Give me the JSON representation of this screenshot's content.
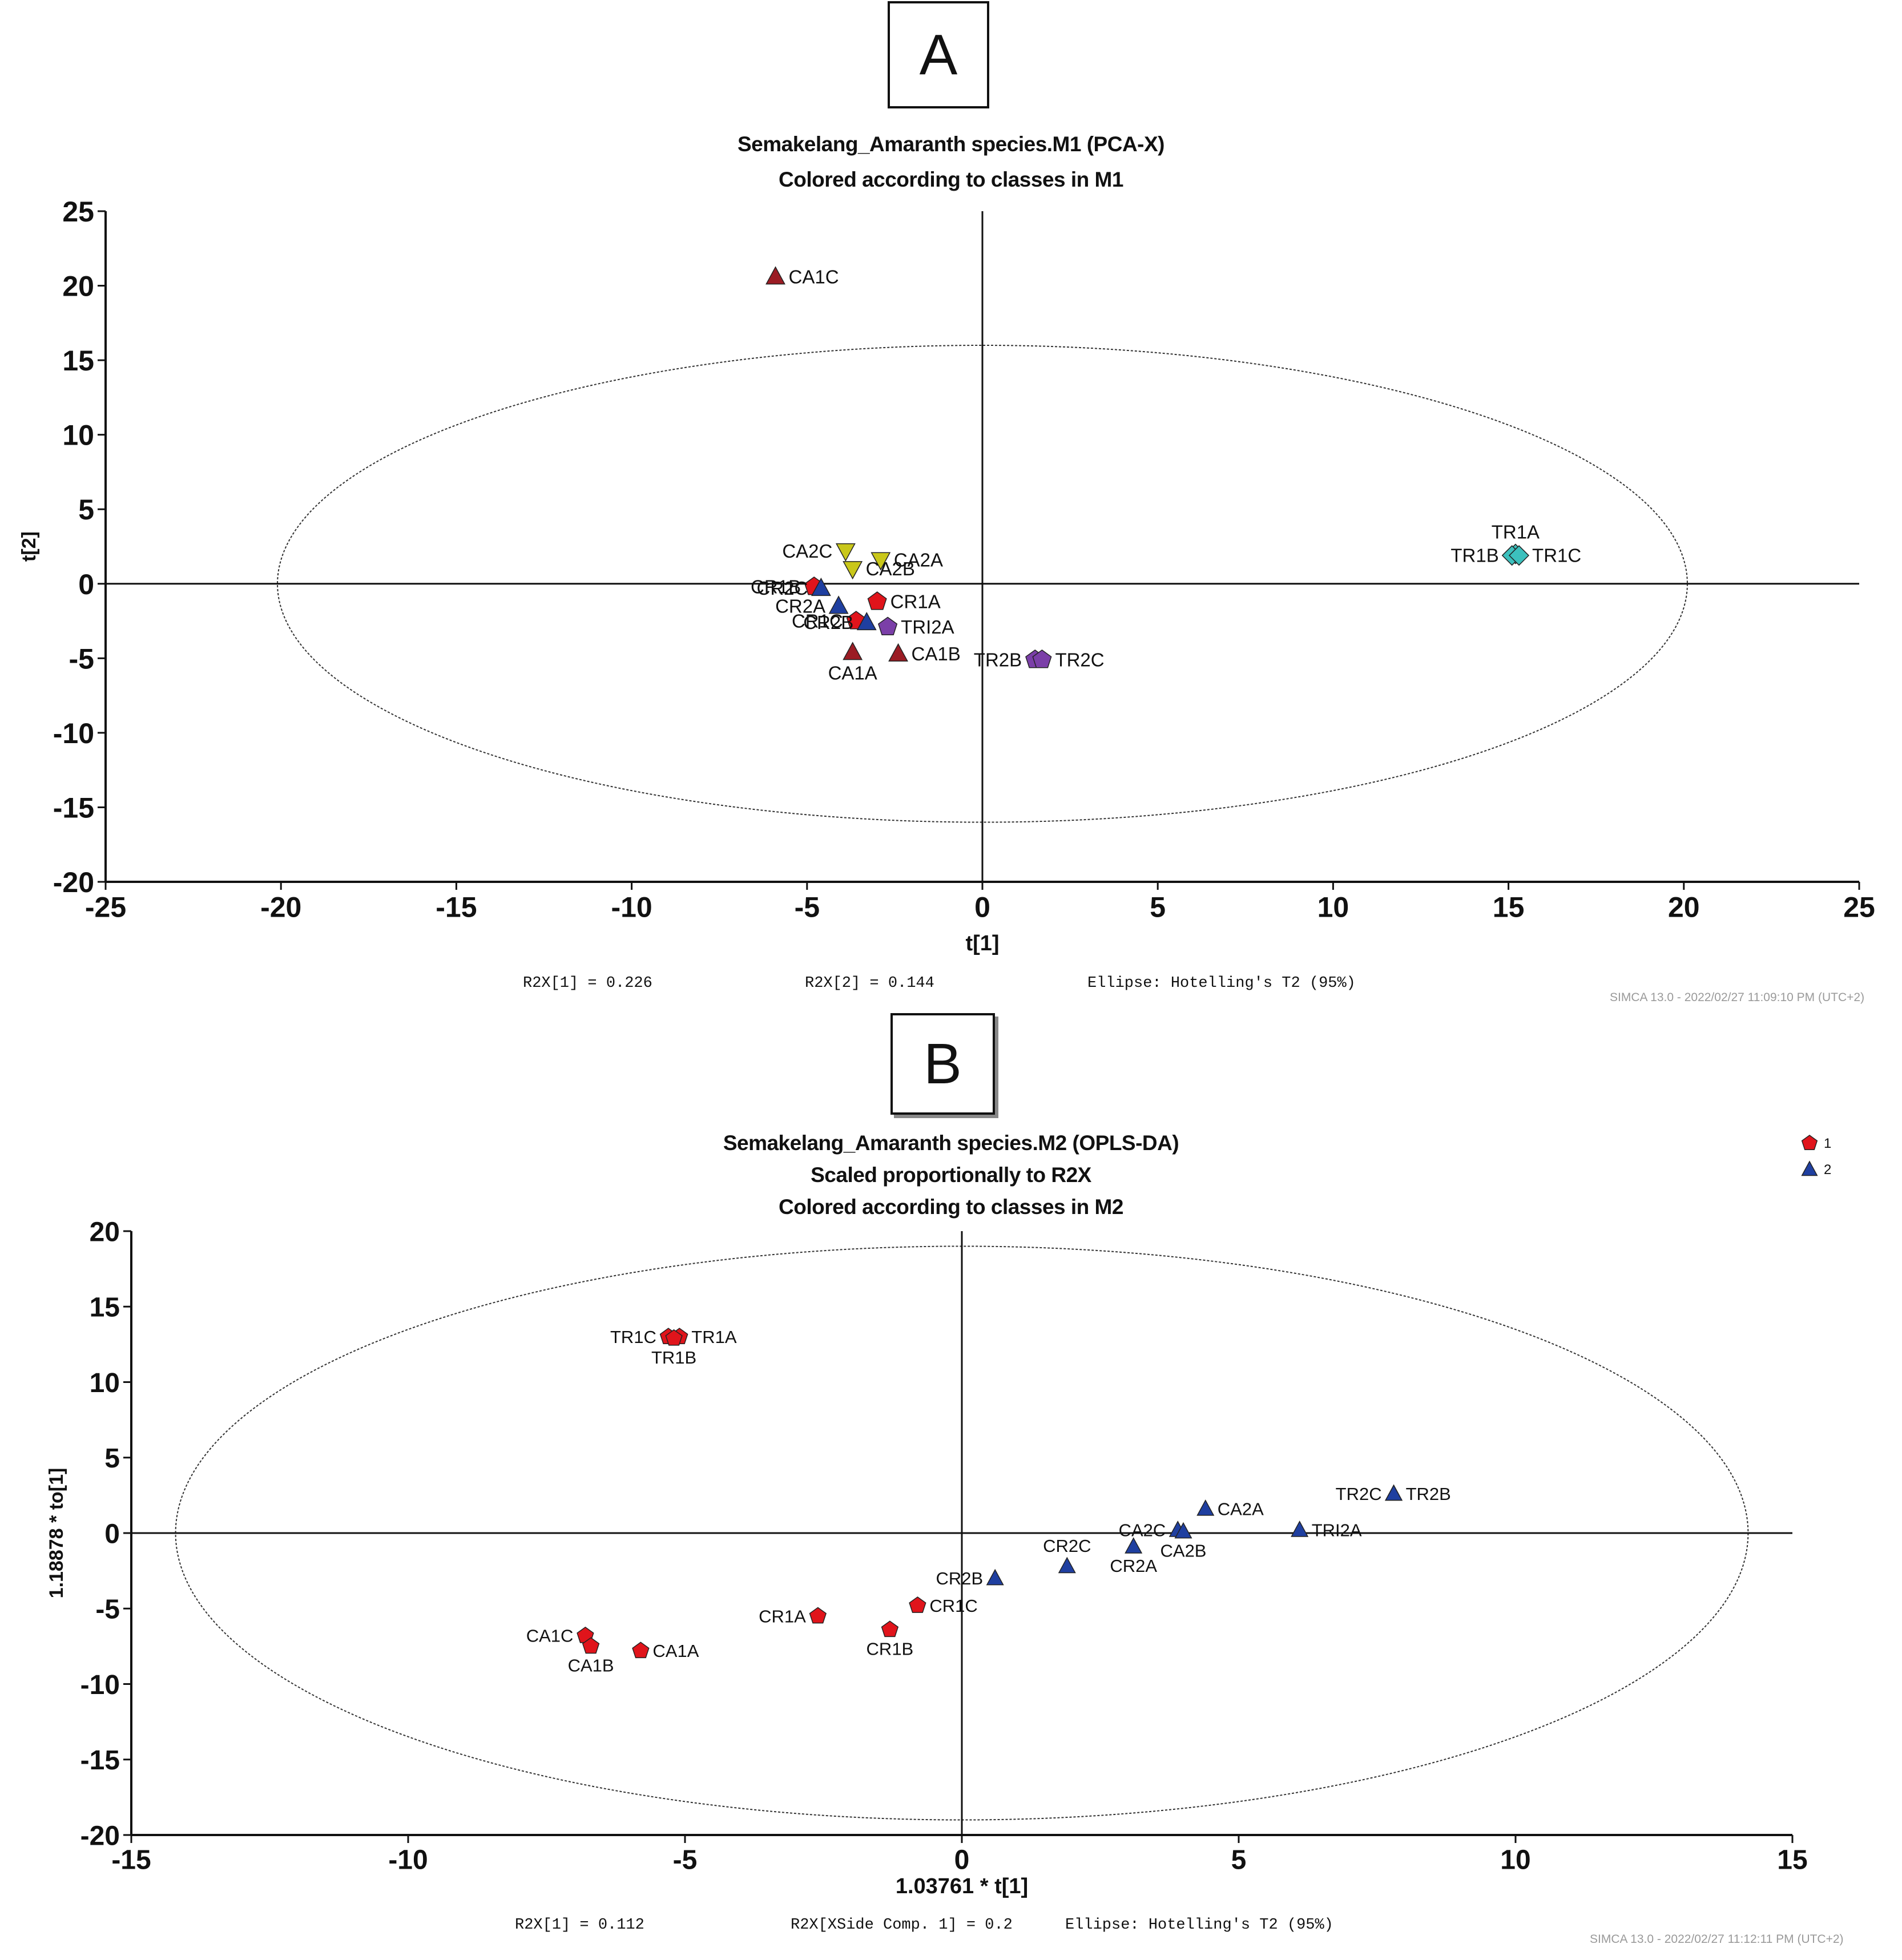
{
  "panels": {
    "a": "A",
    "b": "B"
  },
  "chart_data": [
    {
      "type": "scatter",
      "title_lines": [
        "Semakelang_Amaranth species.M1 (PCA-X)",
        "Colored according to classes in M1"
      ],
      "xlabel": "t[1]",
      "ylabel": "t[2]",
      "xlim": [
        -25,
        25
      ],
      "ylim": [
        -20,
        25
      ],
      "xticks": [
        -25,
        -20,
        -15,
        -10,
        -5,
        0,
        5,
        10,
        15,
        20,
        25
      ],
      "yticks": [
        -20,
        -15,
        -10,
        -5,
        0,
        5,
        10,
        15,
        20,
        25
      ],
      "ellipse": {
        "rx": 20.1,
        "ry": 16,
        "label": "Hotelling's T2 (95%)"
      },
      "footer": {
        "r2x1": "R2X[1] = 0.226",
        "r2x2": "R2X[2] = 0.144",
        "ellipse": "Ellipse: Hotelling's T2 (95%)"
      },
      "software_stamp": "SIMCA 13.0 - 2022/02/27 11:09:10 PM (UTC+2)",
      "points": [
        {
          "label": "CA1C",
          "x": -5.9,
          "y": 20.6,
          "marker": "triangle",
          "color": "#9b1c24",
          "label_pos": "right"
        },
        {
          "label": "CA1A",
          "x": -3.7,
          "y": -4.6,
          "marker": "triangle",
          "color": "#9b1c24",
          "label_pos": "below"
        },
        {
          "label": "CA1B",
          "x": -2.4,
          "y": -4.7,
          "marker": "triangle",
          "color": "#9b1c24",
          "label_pos": "right"
        },
        {
          "label": "CA2C",
          "x": -3.9,
          "y": 2.2,
          "marker": "triangle-down",
          "color": "#c9c71a",
          "label_pos": "left"
        },
        {
          "label": "CA2A",
          "x": -2.9,
          "y": 1.6,
          "marker": "triangle-down",
          "color": "#c9c71a",
          "label_pos": "right"
        },
        {
          "label": "CA2B",
          "x": -3.7,
          "y": 1.0,
          "marker": "triangle-down",
          "color": "#c9c71a",
          "label_pos": "right"
        },
        {
          "label": "CR1B",
          "x": -4.8,
          "y": -0.2,
          "marker": "pentagon",
          "color": "#e0141b",
          "label_pos": "left"
        },
        {
          "label": "CR1A",
          "x": -3.0,
          "y": -1.2,
          "marker": "pentagon",
          "color": "#e0141b",
          "label_pos": "right"
        },
        {
          "label": "CR1C",
          "x": -3.6,
          "y": -2.5,
          "marker": "pentagon",
          "color": "#e0141b",
          "label_pos": "left"
        },
        {
          "label": "CR2C",
          "x": -4.6,
          "y": -0.3,
          "marker": "triangle",
          "color": "#1f3fa0",
          "label_pos": "left"
        },
        {
          "label": "CR2A",
          "x": -4.1,
          "y": -1.5,
          "marker": "triangle",
          "color": "#1f3fa0",
          "label_pos": "left"
        },
        {
          "label": "CR2B",
          "x": -3.3,
          "y": -2.6,
          "marker": "triangle",
          "color": "#1f3fa0",
          "label_pos": "left"
        },
        {
          "label": "TRI2A",
          "x": -2.7,
          "y": -2.9,
          "marker": "pentagon",
          "color": "#7b3fa8",
          "label_pos": "right"
        },
        {
          "label": "TR2B",
          "x": 1.5,
          "y": -5.1,
          "marker": "pentagon",
          "color": "#7b3fa8",
          "label_pos": "left"
        },
        {
          "label": "TR2C",
          "x": 1.7,
          "y": -5.1,
          "marker": "pentagon",
          "color": "#7b3fa8",
          "label_pos": "right"
        },
        {
          "label": "TR1A",
          "x": 15.2,
          "y": 2.0,
          "marker": "diamond",
          "color": "#3cc0bd",
          "label_pos": "above"
        },
        {
          "label": "TR1B",
          "x": 15.1,
          "y": 1.9,
          "marker": "diamond",
          "color": "#3cc0bd",
          "label_pos": "left"
        },
        {
          "label": "TR1C",
          "x": 15.3,
          "y": 1.9,
          "marker": "diamond",
          "color": "#3cc0bd",
          "label_pos": "right"
        }
      ]
    },
    {
      "type": "scatter",
      "title_lines": [
        "Semakelang_Amaranth species.M2 (OPLS-DA)",
        "Scaled proportionally to R2X",
        "Colored according to classes in M2"
      ],
      "xlabel": "1.03761 * t[1]",
      "ylabel": "1.18878 * to[1]",
      "xlim": [
        -15,
        15
      ],
      "ylim": [
        -20,
        20
      ],
      "xticks": [
        -15,
        -10,
        -5,
        0,
        5,
        10,
        15
      ],
      "yticks": [
        -20,
        -15,
        -10,
        -5,
        0,
        5,
        10,
        15,
        20
      ],
      "ellipse": {
        "rx": 14.2,
        "ry": 19,
        "label": "Hotelling's T2 (95%)"
      },
      "legend": [
        {
          "label": "1",
          "marker": "pentagon",
          "color": "#e0141b"
        },
        {
          "label": "2",
          "marker": "triangle",
          "color": "#1f3fa0"
        }
      ],
      "footer": {
        "r2x1": "R2X[1] = 0.112",
        "r2x2": "R2X[XSide Comp. 1] = 0.2",
        "ellipse": "Ellipse: Hotelling's T2 (95%)"
      },
      "software_stamp": "SIMCA 13.0 - 2022/02/27 11:12:11 PM (UTC+2)",
      "points": [
        {
          "label": "TR1C",
          "x": -5.3,
          "y": 13.0,
          "marker": "pentagon",
          "color": "#e0141b",
          "label_pos": "left"
        },
        {
          "label": "TR1A",
          "x": -5.1,
          "y": 13.0,
          "marker": "pentagon",
          "color": "#e0141b",
          "label_pos": "right"
        },
        {
          "label": "TR1B",
          "x": -5.2,
          "y": 12.9,
          "marker": "pentagon",
          "color": "#e0141b",
          "label_pos": "below"
        },
        {
          "label": "CA1C",
          "x": -6.8,
          "y": -6.8,
          "marker": "pentagon",
          "color": "#e0141b",
          "label_pos": "left"
        },
        {
          "label": "CA1B",
          "x": -6.7,
          "y": -7.5,
          "marker": "pentagon",
          "color": "#e0141b",
          "label_pos": "below"
        },
        {
          "label": "CA1A",
          "x": -5.8,
          "y": -7.8,
          "marker": "pentagon",
          "color": "#e0141b",
          "label_pos": "right"
        },
        {
          "label": "CR1A",
          "x": -2.6,
          "y": -5.5,
          "marker": "pentagon",
          "color": "#e0141b",
          "label_pos": "left"
        },
        {
          "label": "CR1B",
          "x": -1.3,
          "y": -6.4,
          "marker": "pentagon",
          "color": "#e0141b",
          "label_pos": "below"
        },
        {
          "label": "CR1C",
          "x": -0.8,
          "y": -4.8,
          "marker": "pentagon",
          "color": "#e0141b",
          "label_pos": "right"
        },
        {
          "label": "CR2B",
          "x": 0.6,
          "y": -3.0,
          "marker": "triangle",
          "color": "#1f3fa0",
          "label_pos": "left"
        },
        {
          "label": "CR2C",
          "x": 1.9,
          "y": -2.2,
          "marker": "triangle",
          "color": "#1f3fa0",
          "label_pos": "above"
        },
        {
          "label": "CR2A",
          "x": 3.1,
          "y": -0.9,
          "marker": "triangle",
          "color": "#1f3fa0",
          "label_pos": "below"
        },
        {
          "label": "CA2C",
          "x": 3.9,
          "y": 0.2,
          "marker": "triangle",
          "color": "#1f3fa0",
          "label_pos": "left"
        },
        {
          "label": "CA2B",
          "x": 4.0,
          "y": 0.1,
          "marker": "triangle",
          "color": "#1f3fa0",
          "label_pos": "below"
        },
        {
          "label": "CA2A",
          "x": 4.4,
          "y": 1.6,
          "marker": "triangle",
          "color": "#1f3fa0",
          "label_pos": "right"
        },
        {
          "label": "TRI2A",
          "x": 6.1,
          "y": 0.2,
          "marker": "triangle",
          "color": "#1f3fa0",
          "label_pos": "right"
        },
        {
          "label": "TR2C",
          "x": 7.8,
          "y": 2.6,
          "marker": "triangle",
          "color": "#1f3fa0",
          "label_pos": "left"
        },
        {
          "label": "TR2B",
          "x": 7.8,
          "y": 2.6,
          "marker": "triangle",
          "color": "#1f3fa0",
          "label_pos": "right"
        }
      ]
    }
  ]
}
